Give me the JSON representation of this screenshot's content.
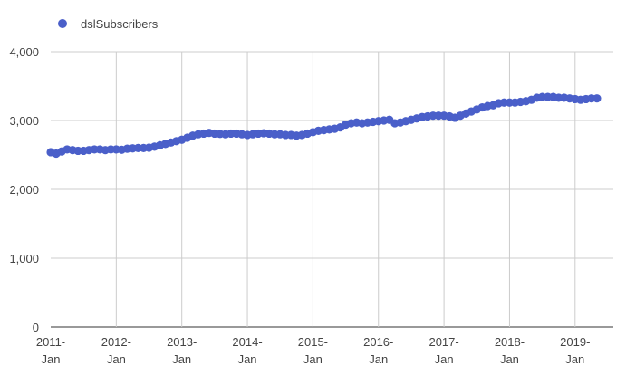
{
  "chart_data": {
    "type": "scatter",
    "title": "",
    "xlabel": "",
    "ylabel": "",
    "legend": {
      "position": "top-left",
      "entries": [
        "dslSubscribers"
      ]
    },
    "grid": true,
    "xlim": [
      "2011-01",
      "2019-08"
    ],
    "ylim": [
      0,
      4000
    ],
    "y_ticks": [
      {
        "value": 0,
        "label": "0"
      },
      {
        "value": 1000,
        "label": "1,000"
      },
      {
        "value": 2000,
        "label": "2,000"
      },
      {
        "value": 3000,
        "label": "3,000"
      },
      {
        "value": 4000,
        "label": "4,000"
      }
    ],
    "x_ticks": [
      {
        "value": "2011-01",
        "line1": "2011-",
        "line2": "Jan"
      },
      {
        "value": "2012-01",
        "line1": "2012-",
        "line2": "Jan"
      },
      {
        "value": "2013-01",
        "line1": "2013-",
        "line2": "Jan"
      },
      {
        "value": "2014-01",
        "line1": "2014-",
        "line2": "Jan"
      },
      {
        "value": "2015-01",
        "line1": "2015-",
        "line2": "Jan"
      },
      {
        "value": "2016-01",
        "line1": "2016-",
        "line2": "Jan"
      },
      {
        "value": "2017-01",
        "line1": "2017-",
        "line2": "Jan"
      },
      {
        "value": "2018-01",
        "line1": "2018-",
        "line2": "Jan"
      },
      {
        "value": "2019-01",
        "line1": "2019-",
        "line2": "Jan"
      }
    ],
    "series": [
      {
        "name": "dslSubscribers",
        "color": "#4a5fc9",
        "x": [
          "2011-01",
          "2011-02",
          "2011-03",
          "2011-04",
          "2011-05",
          "2011-06",
          "2011-07",
          "2011-08",
          "2011-09",
          "2011-10",
          "2011-11",
          "2011-12",
          "2012-01",
          "2012-02",
          "2012-03",
          "2012-04",
          "2012-05",
          "2012-06",
          "2012-07",
          "2012-08",
          "2012-09",
          "2012-10",
          "2012-11",
          "2012-12",
          "2013-01",
          "2013-02",
          "2013-03",
          "2013-04",
          "2013-05",
          "2013-06",
          "2013-07",
          "2013-08",
          "2013-09",
          "2013-10",
          "2013-11",
          "2013-12",
          "2014-01",
          "2014-02",
          "2014-03",
          "2014-04",
          "2014-05",
          "2014-06",
          "2014-07",
          "2014-08",
          "2014-09",
          "2014-10",
          "2014-11",
          "2014-12",
          "2015-01",
          "2015-02",
          "2015-03",
          "2015-04",
          "2015-05",
          "2015-06",
          "2015-07",
          "2015-08",
          "2015-09",
          "2015-10",
          "2015-11",
          "2015-12",
          "2016-01",
          "2016-02",
          "2016-03",
          "2016-04",
          "2016-05",
          "2016-06",
          "2016-07",
          "2016-08",
          "2016-09",
          "2016-10",
          "2016-11",
          "2016-12",
          "2017-01",
          "2017-02",
          "2017-03",
          "2017-04",
          "2017-05",
          "2017-06",
          "2017-07",
          "2017-08",
          "2017-09",
          "2017-10",
          "2017-11",
          "2017-12",
          "2018-01",
          "2018-02",
          "2018-03",
          "2018-04",
          "2018-05",
          "2018-06",
          "2018-07",
          "2018-08",
          "2018-09",
          "2018-10",
          "2018-11",
          "2018-12",
          "2019-01",
          "2019-02",
          "2019-03",
          "2019-04",
          "2019-05"
        ],
        "y": [
          2540,
          2520,
          2550,
          2580,
          2570,
          2560,
          2560,
          2570,
          2580,
          2580,
          2570,
          2580,
          2580,
          2575,
          2590,
          2595,
          2600,
          2600,
          2605,
          2620,
          2640,
          2660,
          2680,
          2700,
          2720,
          2750,
          2780,
          2800,
          2810,
          2820,
          2810,
          2805,
          2800,
          2810,
          2810,
          2800,
          2790,
          2800,
          2810,
          2815,
          2810,
          2800,
          2800,
          2790,
          2790,
          2780,
          2790,
          2810,
          2830,
          2850,
          2860,
          2870,
          2880,
          2900,
          2940,
          2960,
          2970,
          2960,
          2970,
          2980,
          2990,
          3000,
          3010,
          2960,
          2970,
          2990,
          3010,
          3030,
          3050,
          3060,
          3070,
          3070,
          3070,
          3060,
          3040,
          3070,
          3100,
          3130,
          3160,
          3190,
          3210,
          3220,
          3250,
          3260,
          3260,
          3260,
          3270,
          3280,
          3300,
          3330,
          3340,
          3340,
          3340,
          3330,
          3330,
          3320,
          3310,
          3300,
          3310,
          3320,
          3320
        ]
      }
    ]
  }
}
